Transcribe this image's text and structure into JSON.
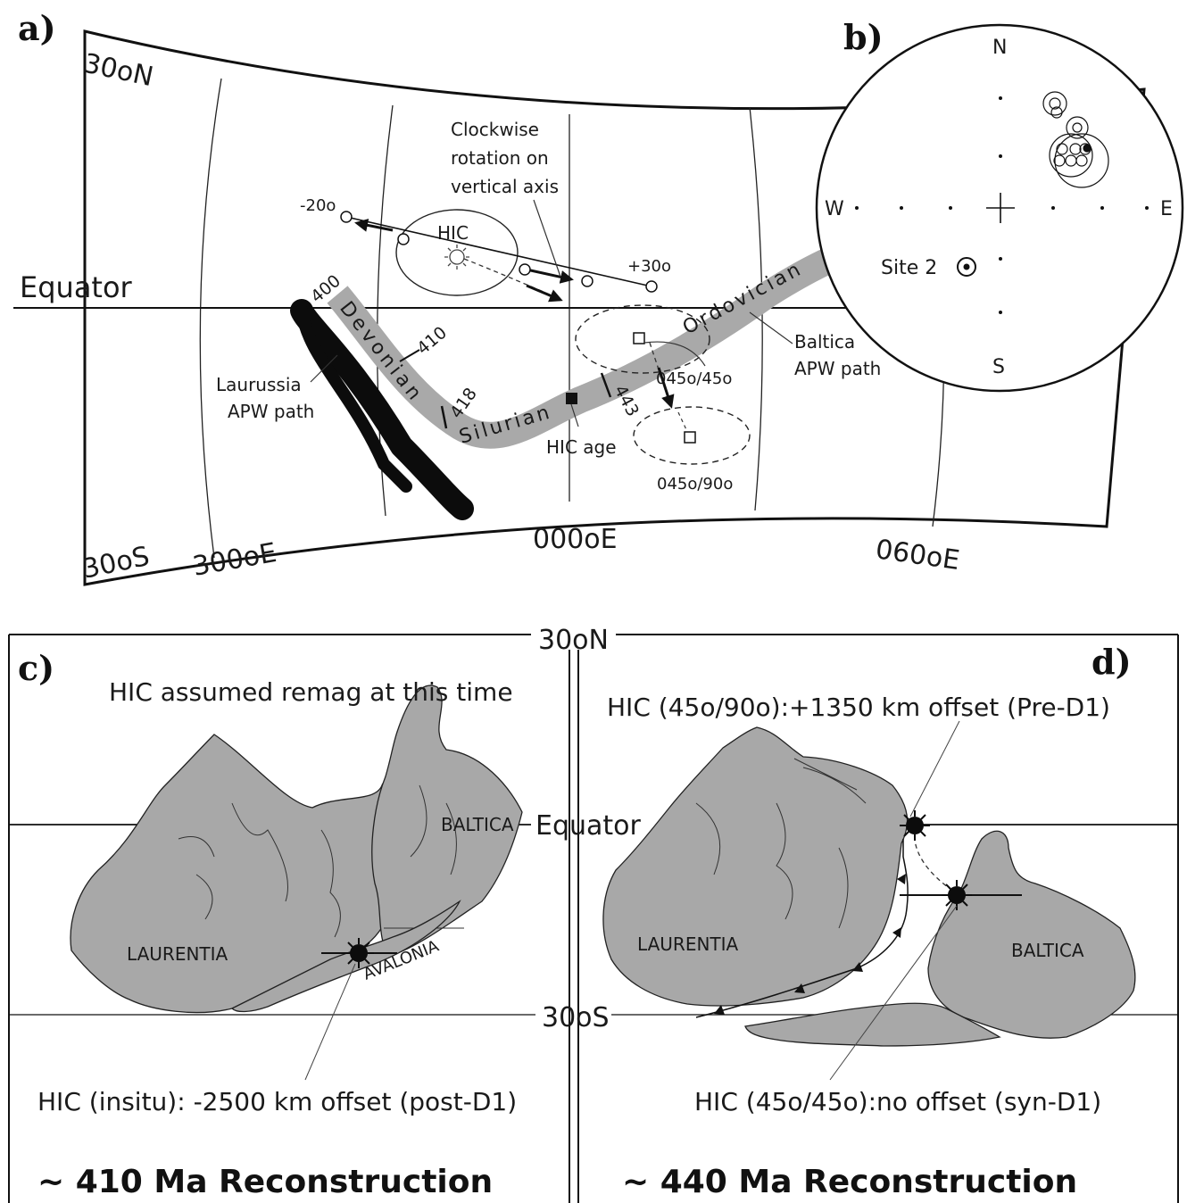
{
  "panels": {
    "a": "a)",
    "b": "b)",
    "c": "c)",
    "d": "d)"
  },
  "map": {
    "lat_north": "30oN",
    "lat_south": "30oS",
    "equator": "Equator",
    "lon_300": "300oE",
    "lon_000": "000oE",
    "lon_060": "060oE",
    "periods": {
      "devonian": "Devonian",
      "silurian": "Silurian",
      "ordovician": "Ordovician"
    },
    "ages": {
      "a400": "400",
      "a410": "410",
      "a418": "418",
      "a443": "443"
    },
    "labels": {
      "hic": "HIC",
      "rotation_1": "Clockwise",
      "rotation_2": "rotation on",
      "rotation_3": "vertical axis",
      "minus20": "-20o",
      "plus30": "+30o",
      "laurussia_1": "Laurussia",
      "laurussia_2": "APW path",
      "baltica_1": "Baltica",
      "baltica_2": "APW path",
      "hic_age": "HIC age",
      "tilt45": "045o/45o",
      "tilt90": "045o/90o"
    },
    "colors": {
      "baltica_path": "#a9a9a9",
      "laurussia_path": "#0c0c0c"
    }
  },
  "stereonet": {
    "n": "N",
    "s": "S",
    "e": "E",
    "w": "W",
    "site": "Site 2"
  },
  "recon": {
    "lat_north": "30oN",
    "lat_south": "30oS",
    "equator": "Equator",
    "c": {
      "note": "HIC assumed remag at this time",
      "laurentia": "LAURENTIA",
      "baltica": "BALTICA",
      "avalonia": "AVALONIA",
      "offset": "HIC (insitu): -2500 km offset (post-D1)",
      "title": "~ 410 Ma Reconstruction"
    },
    "d": {
      "offset_top": "HIC (45o/90o):+1350 km offset (Pre-D1)",
      "laurentia": "LAURENTIA",
      "baltica": "BALTICA",
      "offset_bottom": "HIC (45o/45o):no offset (syn-D1)",
      "title": "~ 440 Ma Reconstruction"
    },
    "colors": {
      "continent": "#a8a8a8"
    }
  }
}
